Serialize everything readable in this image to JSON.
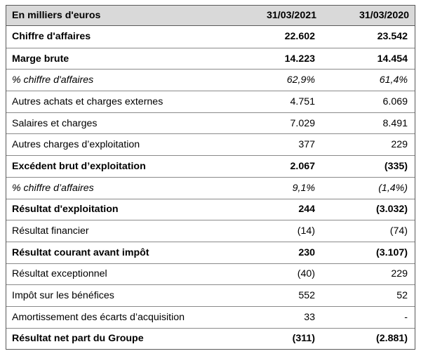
{
  "header": {
    "label": "En milliers d'euros",
    "col_a": "31/03/2021",
    "col_b": "31/03/2020"
  },
  "rows": [
    {
      "label": "Chiffre d'affaires",
      "a": "22.602",
      "b": "23.542"
    },
    {
      "label": "Marge brute",
      "a": "14.223",
      "b": "14.454"
    },
    {
      "label": "% chiffre d'affaires",
      "a": "62,9%",
      "b": "61,4%"
    },
    {
      "label": "Autres achats et charges externes",
      "a": "4.751",
      "b": "6.069"
    },
    {
      "label": "Salaires et charges",
      "a": "7.029",
      "b": "8.491"
    },
    {
      "label": "Autres charges d’exploitation",
      "a": "377",
      "b": "229"
    },
    {
      "label": "Excédent brut d’exploitation",
      "a": "2.067",
      "b": "(335)"
    },
    {
      "label": "% chiffre d’affaires",
      "a": "9,1%",
      "b": "(1,4%)"
    },
    {
      "label": "Résultat d'exploitation",
      "a": "244",
      "b": "(3.032)"
    },
    {
      "label": "Résultat financier",
      "a": "(14)",
      "b": "(74)"
    },
    {
      "label": "Résultat courant avant impôt",
      "a": "230",
      "b": "(3.107)"
    },
    {
      "label": "Résultat exceptionnel",
      "a": "(40)",
      "b": "229"
    },
    {
      "label": "Impôt sur les bénéfices",
      "a": "552",
      "b": "52"
    },
    {
      "label": "Amortissement des écarts d’acquisition",
      "a": "33",
      "b": "-"
    },
    {
      "label": "Résultat net part du Groupe",
      "a": "(311)",
      "b": "(2.881)"
    }
  ]
}
